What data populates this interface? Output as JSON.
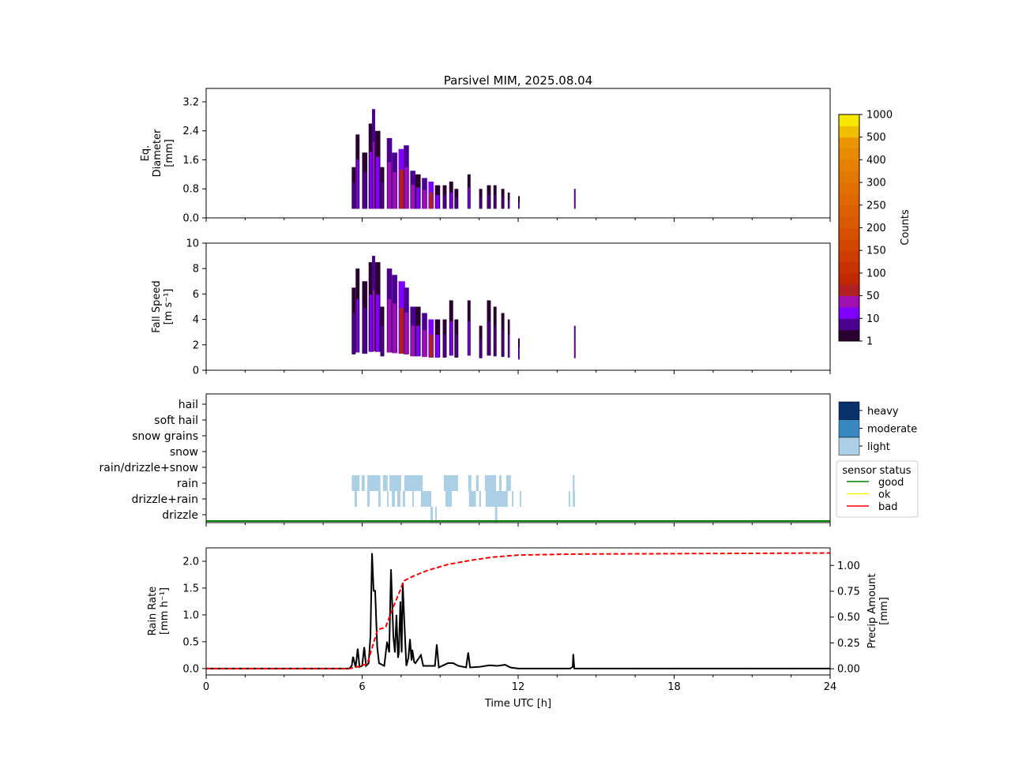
{
  "chart_data": {
    "title": "Parsivel MIM, 2025.08.04",
    "xlabel": "Time UTC [h]",
    "xlim": [
      0,
      24
    ],
    "xticks": [
      "0",
      "6",
      "12",
      "18",
      "24"
    ],
    "panels": [
      {
        "type": "heatmap",
        "name": "diameter",
        "ylabel": [
          "Eq.",
          "Diameter",
          "[mm]"
        ],
        "ylim": [
          0,
          3.57
        ],
        "yticks": [
          "0.0",
          "0.8",
          "1.6",
          "2.4",
          "3.2"
        ]
      },
      {
        "type": "heatmap",
        "name": "fall-speed",
        "ylabel": [
          "Fall Speed",
          "[m s⁻¹]"
        ],
        "ylim": [
          0,
          10
        ],
        "yticks": [
          "0",
          "2",
          "4",
          "6",
          "8",
          "10"
        ]
      },
      {
        "type": "table",
        "name": "precip-type",
        "categories": [
          "hail",
          "soft hail",
          "snow grains",
          "snow",
          "rain/drizzle+snow",
          "rain",
          "drizzle+rain",
          "drizzle"
        ]
      },
      {
        "type": "line",
        "name": "rain-rate",
        "ylabel": [
          "Rain Rate",
          "[mm h⁻¹]"
        ],
        "ylim": [
          -0.12,
          2.25
        ],
        "yticks": [
          "0.0",
          "0.5",
          "1.0",
          "1.5",
          "2.0"
        ],
        "y2label": [
          "Precip Amount",
          "[mm]"
        ],
        "y2lim": [
          -0.06,
          1.17
        ],
        "y2ticks": [
          "0.00",
          "0.25",
          "0.50",
          "0.75",
          "1.00"
        ]
      }
    ],
    "spectra": [
      [
        5.6,
        0.15,
        1.4,
        6.5,
        1
      ],
      [
        5.75,
        0.15,
        2.3,
        8,
        2
      ],
      [
        6.0,
        0.2,
        1.8,
        7,
        1
      ],
      [
        6.25,
        0.2,
        2.6,
        8.5,
        2
      ],
      [
        6.38,
        0.12,
        3.0,
        9,
        3
      ],
      [
        6.5,
        0.2,
        2.4,
        8.5,
        2
      ],
      [
        6.7,
        0.15,
        1.4,
        5,
        1
      ],
      [
        6.95,
        0.2,
        2.2,
        8,
        3
      ],
      [
        7.15,
        0.2,
        1.8,
        7.5,
        3
      ],
      [
        7.4,
        0.25,
        1.9,
        7,
        4
      ],
      [
        7.6,
        0.2,
        2.0,
        6.5,
        3
      ],
      [
        7.85,
        0.2,
        1.3,
        5,
        3
      ],
      [
        8.05,
        0.2,
        1.2,
        5,
        2
      ],
      [
        8.3,
        0.2,
        1.1,
        4.5,
        3
      ],
      [
        8.55,
        0.2,
        1.0,
        4,
        4
      ],
      [
        8.8,
        0.2,
        0.9,
        4,
        2
      ],
      [
        9.1,
        0.15,
        0.9,
        4,
        1
      ],
      [
        9.35,
        0.15,
        1.0,
        5.5,
        2
      ],
      [
        9.55,
        0.15,
        0.8,
        4,
        1
      ],
      [
        10.05,
        0.12,
        1.2,
        5.5,
        2
      ],
      [
        10.5,
        0.12,
        0.8,
        3.5,
        1
      ],
      [
        10.8,
        0.15,
        0.9,
        5.5,
        1
      ],
      [
        11.05,
        0.12,
        0.9,
        5,
        1
      ],
      [
        11.35,
        0.12,
        0.8,
        4.5,
        1
      ],
      [
        11.6,
        0.08,
        0.7,
        4,
        2
      ],
      [
        12.0,
        0.05,
        0.6,
        2.5,
        2
      ],
      [
        14.15,
        0.06,
        0.8,
        3.5,
        3
      ]
    ],
    "spectra_colors": [
      "#2a0030",
      "#4b0090",
      "#8000ff",
      "#a010b0",
      "#b02020"
    ],
    "precip_rows": {
      "rain": [
        [
          5.6,
          5.9
        ],
        [
          5.98,
          6.1
        ],
        [
          6.2,
          6.7
        ],
        [
          6.8,
          6.98
        ],
        [
          7.05,
          7.5
        ],
        [
          7.62,
          8.33
        ],
        [
          9.14,
          9.69
        ],
        [
          10.08,
          10.2
        ],
        [
          10.38,
          10.48
        ],
        [
          10.72,
          11.15
        ],
        [
          11.27,
          11.36
        ],
        [
          11.54,
          11.72
        ],
        [
          14.1,
          14.17
        ]
      ],
      "drizzle+rain": [
        [
          5.71,
          5.8
        ],
        [
          6.2,
          6.29
        ],
        [
          6.62,
          6.71
        ],
        [
          6.96,
          7.02
        ],
        [
          7.14,
          7.26
        ],
        [
          7.35,
          7.47
        ],
        [
          7.56,
          7.65
        ],
        [
          7.93,
          7.99
        ],
        [
          8.26,
          8.66
        ],
        [
          9.2,
          9.45
        ],
        [
          10.11,
          10.38
        ],
        [
          10.5,
          10.57
        ],
        [
          10.75,
          11.6
        ],
        [
          11.76,
          11.82
        ],
        [
          12.06,
          12.12
        ],
        [
          13.94,
          14.0
        ],
        [
          14.1,
          14.19
        ]
      ],
      "drizzle": [
        [
          8.63,
          8.72
        ],
        [
          8.81,
          8.87
        ],
        [
          11.11,
          11.2
        ]
      ]
    },
    "rain_rate": {
      "t": [
        0,
        5.5,
        5.6,
        5.65,
        5.75,
        5.83,
        5.9,
        6.0,
        6.08,
        6.15,
        6.25,
        6.32,
        6.38,
        6.44,
        6.5,
        6.58,
        6.65,
        6.85,
        6.96,
        7.04,
        7.11,
        7.2,
        7.26,
        7.32,
        7.38,
        7.41,
        7.47,
        7.52,
        7.56,
        7.62,
        7.7,
        7.78,
        7.84,
        7.9,
        7.93,
        8.0,
        8.05,
        8.26,
        8.35,
        8.47,
        8.8,
        8.87,
        8.95,
        9.08,
        9.3,
        9.5,
        9.7,
        10.0,
        10.08,
        10.15,
        10.5,
        10.9,
        11.2,
        11.5,
        11.7,
        12,
        14.0,
        14.1,
        14.12,
        14.16,
        14.25,
        24
      ],
      "v": [
        0,
        0,
        0.05,
        0.22,
        0.02,
        0.37,
        0.03,
        0.05,
        0.4,
        0.05,
        0.1,
        0.6,
        2.15,
        1.45,
        1.45,
        0.4,
        0.1,
        0.05,
        0.5,
        0.3,
        1.85,
        0.6,
        0.3,
        1.0,
        0.2,
        0.3,
        1.25,
        0.3,
        1.6,
        0.9,
        0.05,
        0.2,
        0.55,
        0.15,
        0.35,
        0.12,
        0.1,
        0.25,
        0.05,
        0.05,
        0.05,
        0.45,
        0.02,
        0.05,
        0.1,
        0.1,
        0.05,
        0.02,
        0.3,
        0.02,
        0.03,
        0.06,
        0.05,
        0.07,
        0.02,
        0,
        0,
        0.03,
        0.27,
        0,
        0,
        0
      ]
    },
    "precip_amount": {
      "t": [
        0,
        5.5,
        6.0,
        6.2,
        6.5,
        6.6,
        6.9,
        7.2,
        7.4,
        7.6,
        8.0,
        8.5,
        9.3,
        10.2,
        11,
        12,
        14.2,
        24
      ],
      "v": [
        0,
        0,
        0.03,
        0.05,
        0.3,
        0.38,
        0.4,
        0.6,
        0.72,
        0.85,
        0.9,
        0.95,
        1.01,
        1.05,
        1.08,
        1.1,
        1.11,
        1.12
      ]
    },
    "colorbar": {
      "label": "Counts",
      "ticks": [
        "1",
        "10",
        "50",
        "100",
        "150",
        "200",
        "250",
        "300",
        "400",
        "500",
        "1000"
      ],
      "colors": [
        "#2a0030",
        "#4b0090",
        "#8000ff",
        "#a010b0",
        "#b02020",
        "#c02800",
        "#c83200",
        "#cd3c00",
        "#d24600",
        "#d65000",
        "#d95800",
        "#dc6000",
        "#df6800",
        "#e17000",
        "#e37800",
        "#e58000",
        "#e88a00",
        "#eb9600",
        "#f0c000",
        "#f8e800"
      ]
    },
    "intensity_legend": {
      "items": [
        {
          "label": "heavy",
          "color": "#08306b"
        },
        {
          "label": "moderate",
          "color": "#3787c0"
        },
        {
          "label": "light",
          "color": "#abd0e6"
        }
      ]
    },
    "status_legend": {
      "title": "sensor status",
      "items": [
        {
          "label": "good",
          "color": "#008000"
        },
        {
          "label": "ok",
          "color": "#ffff00"
        },
        {
          "label": "bad",
          "color": "#ff0000"
        }
      ]
    },
    "sensor_status": "good"
  }
}
